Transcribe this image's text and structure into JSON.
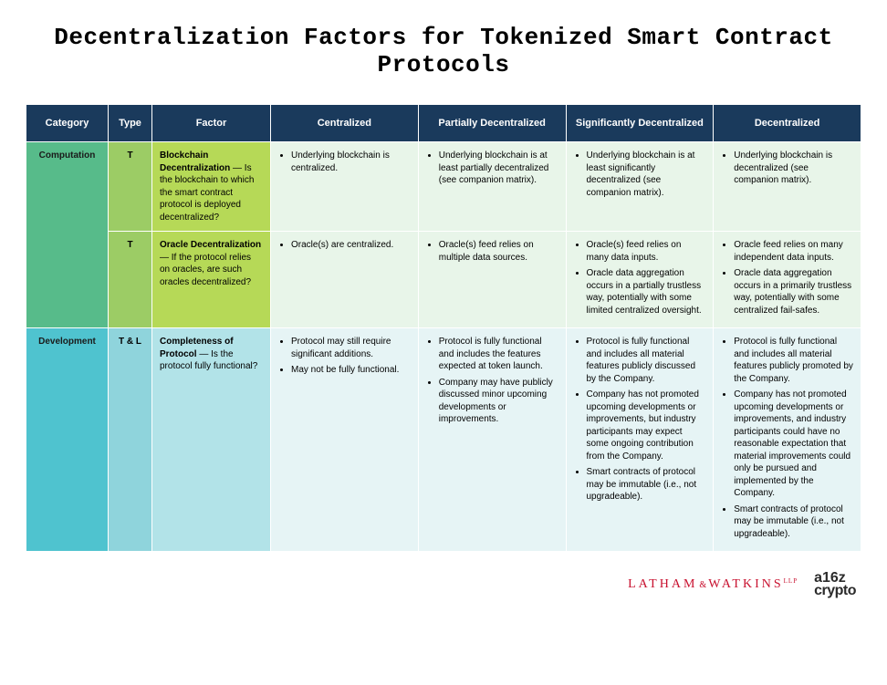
{
  "title": "Decentralization Factors for Tokenized Smart Contract Protocols",
  "columns": [
    "Category",
    "Type",
    "Factor",
    "Centralized",
    "Partially Decentralized",
    "Significantly Decentralized",
    "Decentralized"
  ],
  "header_bg": "#1a3a5c",
  "header_fg": "#ffffff",
  "categories": [
    {
      "name": "Computation",
      "cat_bg": "#57bb8a",
      "type_bg": "#9ccc65",
      "factor_bg": "#b6d957",
      "cell_bg": "#e8f5e9",
      "rows": [
        {
          "type": "T",
          "factor_name": "Blockchain Decentralization",
          "factor_desc": " — Is the blockchain to which the smart contract protocol is deployed decentralized?",
          "cells": [
            [
              "Underlying blockchain is centralized."
            ],
            [
              "Underlying blockchain is at least partially decentralized (see companion matrix)."
            ],
            [
              "Underlying blockchain is at least significantly decentralized (see companion matrix)."
            ],
            [
              "Underlying blockchain is decentralized (see companion matrix)."
            ]
          ]
        },
        {
          "type": "T",
          "factor_name": "Oracle Decentralization",
          "factor_desc": " — If the protocol relies on oracles, are such oracles decentralized?",
          "cells": [
            [
              "Oracle(s) are centralized."
            ],
            [
              "Oracle(s) feed relies on multiple data sources."
            ],
            [
              "Oracle(s) feed relies on many data inputs.",
              "Oracle data aggregation occurs in a partially trustless way, potentially with some limited centralized oversight."
            ],
            [
              "Oracle feed relies on many independent data inputs.",
              "Oracle data aggregation occurs in a primarily trustless way, potentially with some centralized fail-safes."
            ]
          ]
        }
      ]
    },
    {
      "name": "Development",
      "cat_bg": "#4fc3cf",
      "type_bg": "#8fd4dc",
      "factor_bg": "#b2e3e8",
      "cell_bg": "#e6f4f5",
      "rows": [
        {
          "type": "T & L",
          "factor_name": "Completeness of Protocol",
          "factor_desc": " — Is the protocol fully functional?",
          "cells": [
            [
              "Protocol may still require significant additions.",
              "May not be fully functional."
            ],
            [
              "Protocol is fully functional and includes the features expected at token launch.",
              "Company may have publicly discussed minor upcoming developments or improvements."
            ],
            [
              "Protocol is fully functional and includes all material features publicly discussed by the Company.",
              "Company has not promoted upcoming developments or improvements, but industry participants may expect some ongoing contribution from the Company.",
              "Smart contracts of protocol may be immutable (i.e., not upgradeable)."
            ],
            [
              "Protocol is fully functional and includes all material features publicly promoted by the Company.",
              "Company has not promoted upcoming developments or improvements, and industry participants could have no reasonable expectation that material improvements could only be pursued and implemented by the Company.",
              "Smart contracts of protocol may be immutable (i.e., not upgradeable)."
            ]
          ]
        }
      ]
    }
  ],
  "footer": {
    "latham": {
      "left": "LATHAM",
      "amp": "&",
      "right": "WATKINS",
      "suffix": "LLP",
      "color": "#c8102e"
    },
    "a16z": {
      "top": "a16z",
      "bot": "crypto",
      "color": "#2b2b2b"
    }
  }
}
